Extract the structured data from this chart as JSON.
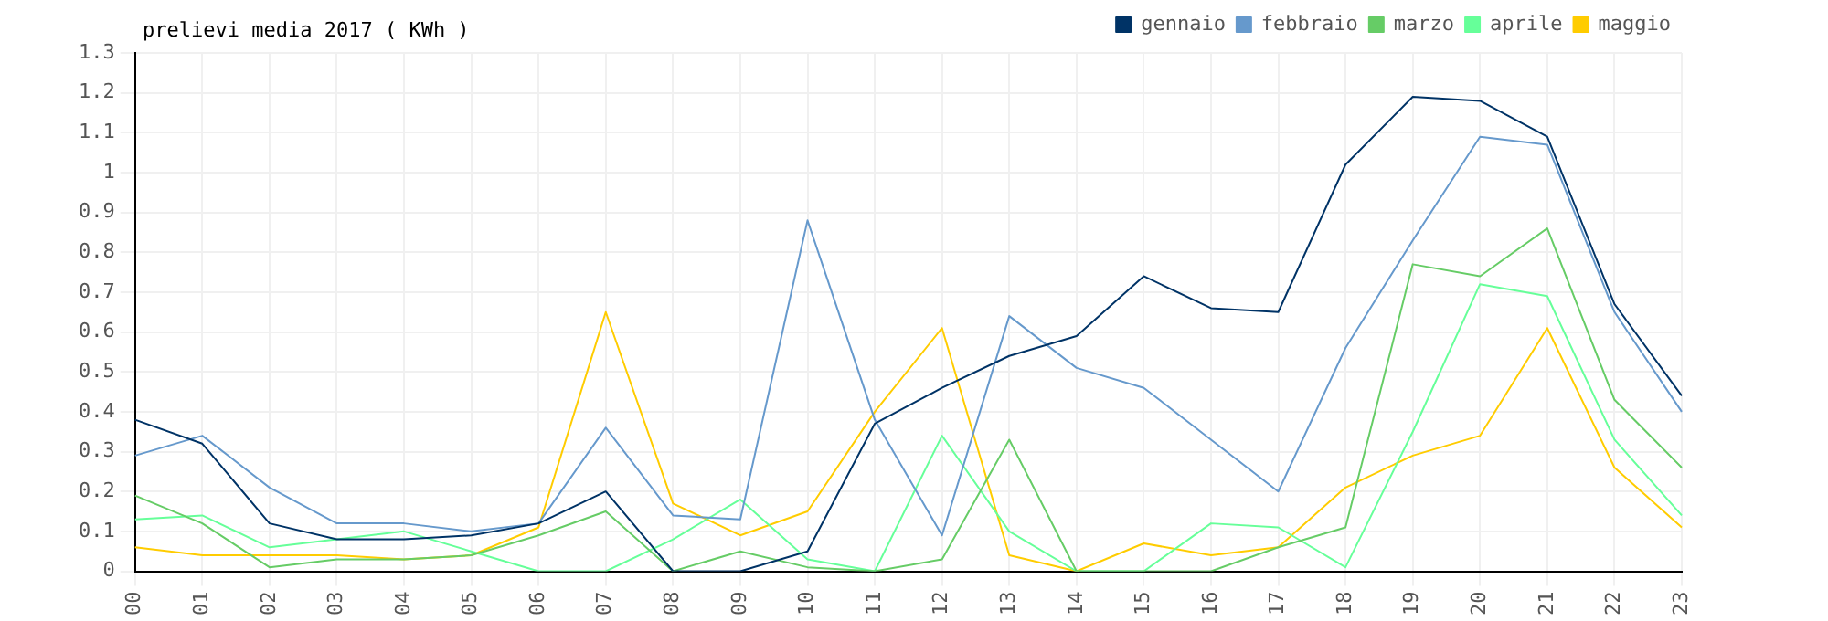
{
  "chart_data": {
    "type": "line",
    "title": "prelievi media 2017 ( KWh )",
    "categories": [
      "00",
      "01",
      "02",
      "03",
      "04",
      "05",
      "06",
      "07",
      "08",
      "09",
      "10",
      "11",
      "12",
      "13",
      "14",
      "15",
      "16",
      "17",
      "18",
      "19",
      "20",
      "21",
      "22",
      "23"
    ],
    "series": [
      {
        "name": "gennaio",
        "color": "#003366",
        "values": [
          0.38,
          0.32,
          0.12,
          0.08,
          0.08,
          0.09,
          0.12,
          0.2,
          0,
          0,
          0.05,
          0.37,
          0.46,
          0.54,
          0.59,
          0.74,
          0.66,
          0.65,
          1.02,
          1.19,
          1.18,
          1.09,
          0.67,
          0.44
        ]
      },
      {
        "name": "febbraio",
        "color": "#6699cc",
        "values": [
          0.29,
          0.34,
          0.21,
          0.12,
          0.12,
          0.1,
          0.12,
          0.36,
          0.14,
          0.13,
          0.88,
          0.38,
          0.09,
          0.64,
          0.51,
          0.46,
          0.33,
          0.2,
          0.56,
          0.83,
          1.09,
          1.07,
          0.65,
          0.4
        ]
      },
      {
        "name": "marzo",
        "color": "#66cc66",
        "values": [
          0.19,
          0.12,
          0.01,
          0.03,
          0.03,
          0.04,
          0.09,
          0.15,
          0,
          0.05,
          0.01,
          0,
          0.03,
          0.33,
          0,
          0,
          0,
          0.06,
          0.11,
          0.77,
          0.74,
          0.86,
          0.43,
          0.26
        ]
      },
      {
        "name": "aprile",
        "color": "#66ff99",
        "values": [
          0.13,
          0.14,
          0.06,
          0.08,
          0.1,
          0.05,
          0,
          0,
          0.08,
          0.18,
          0.03,
          0,
          0.34,
          0.1,
          0,
          0,
          0.12,
          0.11,
          0.01,
          0.35,
          0.72,
          0.69,
          0.33,
          0.14
        ]
      },
      {
        "name": "maggio",
        "color": "#ffcc00",
        "values": [
          0.06,
          0.04,
          0.04,
          0.04,
          0.03,
          0.04,
          0.11,
          0.65,
          0.17,
          0.09,
          0.15,
          0.4,
          0.61,
          0.04,
          0,
          0.07,
          0.04,
          0.06,
          0.21,
          0.29,
          0.34,
          0.61,
          0.26,
          0.11
        ]
      }
    ],
    "ylim": [
      0,
      1.3
    ],
    "yticks": [
      0,
      0.1,
      0.2,
      0.3,
      0.4,
      0.5,
      0.6,
      0.7,
      0.8,
      0.9,
      1,
      1.1,
      1.2,
      1.3
    ],
    "grid": true,
    "legend": "top right",
    "marker": "none",
    "line_style": "solid"
  }
}
